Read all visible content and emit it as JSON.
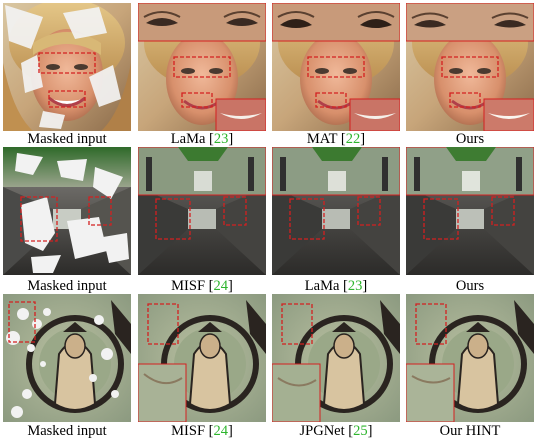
{
  "rows": [
    {
      "name": "face",
      "captions": [
        {
          "text": "Masked input",
          "ref": ""
        },
        {
          "text": "LaMa",
          "ref": "23"
        },
        {
          "text": "MAT",
          "ref": "22"
        },
        {
          "text": "Ours",
          "ref": ""
        }
      ]
    },
    {
      "name": "corridor",
      "captions": [
        {
          "text": "Masked input",
          "ref": ""
        },
        {
          "text": "MISF",
          "ref": "24"
        },
        {
          "text": "LaMa",
          "ref": "23"
        },
        {
          "text": "Ours",
          "ref": ""
        }
      ]
    },
    {
      "name": "mural",
      "captions": [
        {
          "text": "Masked input",
          "ref": ""
        },
        {
          "text": "MISF",
          "ref": "24"
        },
        {
          "text": "JPGNet",
          "ref": "25"
        },
        {
          "text": "Our HINT",
          "ref": ""
        }
      ]
    }
  ],
  "colors": {
    "citation": "#2db52d",
    "zoom_box": "#d42020",
    "mask": "#f2f2f2"
  }
}
